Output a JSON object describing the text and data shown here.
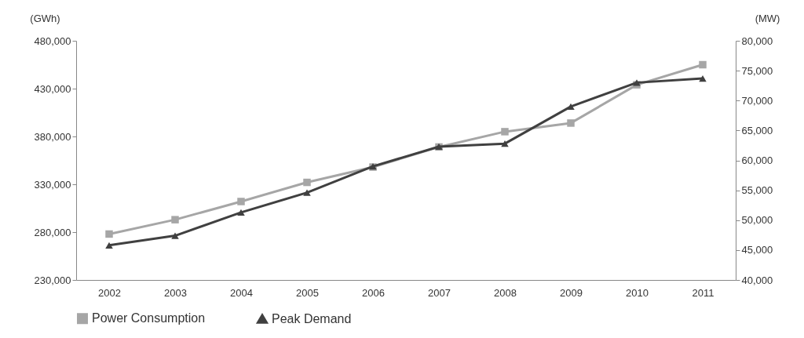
{
  "chart_data": {
    "type": "line",
    "ylabel": "(GWh)",
    "y2label": "(MW)",
    "categories": [
      "2002",
      "2003",
      "2004",
      "2005",
      "2006",
      "2007",
      "2008",
      "2009",
      "2010",
      "2011"
    ],
    "series": [
      {
        "name": "Power Consumption",
        "color": "#a6a6a6",
        "marker": "square",
        "values": [
          278000,
          293000,
          312000,
          332000,
          348000,
          369000,
          385000,
          394000,
          434000,
          455000
        ]
      },
      {
        "name": "Peak Demand",
        "color": "#404040",
        "marker": "triangle",
        "axis": "y2",
        "values": [
          45800,
          47400,
          51300,
          54600,
          59000,
          62300,
          62800,
          69000,
          73000,
          73700
        ]
      }
    ],
    "ylim": [
      230000,
      480000
    ],
    "yticks": [
      {
        "value": 230000,
        "label": "230,000"
      },
      {
        "value": 280000,
        "label": "280,000"
      },
      {
        "value": 330000,
        "label": "330,000"
      },
      {
        "value": 380000,
        "label": "380,000"
      },
      {
        "value": 430000,
        "label": "430,000"
      },
      {
        "value": 480000,
        "label": "480,000"
      }
    ],
    "y2lim": [
      40000,
      80000
    ],
    "y2ticks": [
      {
        "value": 40000,
        "label": "40,000"
      },
      {
        "value": 45000,
        "label": "45,000"
      },
      {
        "value": 50000,
        "label": "50,000"
      },
      {
        "value": 55000,
        "label": "55,000"
      },
      {
        "value": 60000,
        "label": "60,000"
      },
      {
        "value": 65000,
        "label": "65,000"
      },
      {
        "value": 70000,
        "label": "70,000"
      },
      {
        "value": 75000,
        "label": "75,000"
      },
      {
        "value": 80000,
        "label": "80,000"
      }
    ],
    "grid": false,
    "legend": "bottom"
  }
}
